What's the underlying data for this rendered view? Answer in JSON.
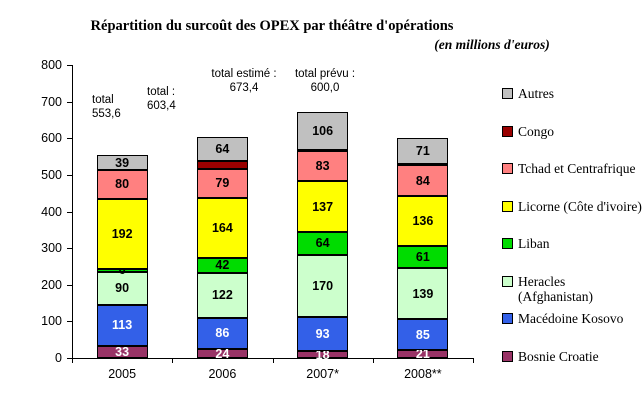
{
  "title": "Répartition du surcoût des OPEX par théâtre d'opérations",
  "subtitle": "(en millions d'euros)",
  "chart_data": {
    "type": "bar",
    "stacked": true,
    "title": "Répartition du surcoût des OPEX par théâtre d'opérations",
    "subtitle": "(en millions d'euros)",
    "unit": "millions d'euros",
    "grid": false,
    "legend_position": "right",
    "categories": [
      "2005",
      "2006",
      "2007*",
      "2008**"
    ],
    "y_axis": {
      "min": 0,
      "max": 800,
      "step": 100,
      "ticks": [
        "0",
        "100",
        "200",
        "300",
        "400",
        "500",
        "600",
        "700",
        "800"
      ]
    },
    "series": [
      {
        "name": "Bosnie Croatie",
        "color": "#993366",
        "text_color": "#ffffff",
        "values": [
          33,
          24,
          18,
          21
        ],
        "labels": [
          "33",
          "24",
          "18",
          "21"
        ]
      },
      {
        "name": "Macédoine Kosovo",
        "color": "#3360E8",
        "text_color": "#ffffff",
        "values": [
          113,
          86,
          93,
          85
        ],
        "labels": [
          "113",
          "86",
          "93",
          "85"
        ]
      },
      {
        "name": "Heracles (Afghanistan)",
        "legend_lines": [
          "Heracles",
          "(Afghanistan)"
        ],
        "color": "#CCFFCC",
        "text_color": "#000000",
        "values": [
          90,
          122,
          170,
          139
        ],
        "labels": [
          "90",
          "122",
          "170",
          "139"
        ]
      },
      {
        "name": "Liban",
        "color": "#00DC00",
        "text_color": "#000000",
        "values": [
          6,
          42,
          64,
          61
        ],
        "labels": [
          "6",
          "42",
          "64",
          "61"
        ]
      },
      {
        "name": "Licorne (Côte d'ivoire)",
        "color": "#FFFF00",
        "text_color": "#000000",
        "values": [
          192,
          164,
          137,
          136
        ],
        "labels": [
          "192",
          "164",
          "137",
          "136"
        ]
      },
      {
        "name": "Tchad et Centrafrique",
        "color": "#FF8080",
        "text_color": "#000000",
        "values": [
          80,
          79,
          83,
          84
        ],
        "labels": [
          "80",
          "79",
          "83",
          "84"
        ]
      },
      {
        "name": "Congo",
        "color": "#990000",
        "text_color": "#ffffff",
        "values": [
          0,
          22,
          2,
          3
        ],
        "labels": [
          "",
          "",
          "",
          ""
        ]
      },
      {
        "name": "Autres",
        "color": "#C0C0C0",
        "text_color": "#000000",
        "values": [
          39,
          64,
          106,
          71
        ],
        "labels": [
          "39",
          "64",
          "106",
          "71"
        ]
      }
    ],
    "totals": [
      {
        "lines": [
          "total",
          "553,6"
        ],
        "x": 92,
        "y": 94,
        "align": "left"
      },
      {
        "lines": [
          "total :",
          "603,4"
        ],
        "x": 147,
        "y": 86,
        "align": "left"
      },
      {
        "lines": [
          "total estimé :",
          "673,4"
        ],
        "x": 244,
        "y": 68,
        "align": "center"
      },
      {
        "lines": [
          "total prévu :",
          "600,0"
        ],
        "x": 325,
        "y": 68,
        "align": "center"
      }
    ]
  }
}
